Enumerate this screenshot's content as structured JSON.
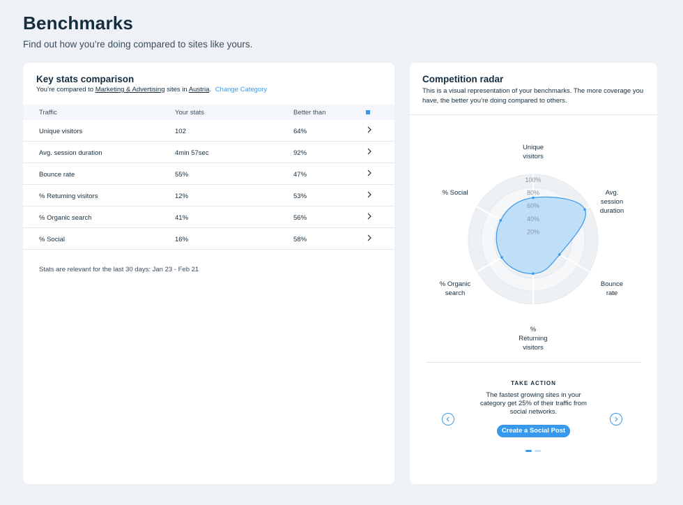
{
  "page": {
    "title": "Benchmarks",
    "subtitle": "Find out how you’re doing compared to sites like yours."
  },
  "key_stats": {
    "title": "Key stats comparison",
    "compared_prefix": "You’re compared to",
    "category": "Marketing & Advertising",
    "sites_in": "sites in",
    "country": "Austria",
    "period": ".",
    "change_link": "Change Category",
    "columns": [
      "Traffic",
      "Your stats",
      "Better than"
    ],
    "rows": [
      {
        "metric": "Unique visitors",
        "stat": "102",
        "better": "64%"
      },
      {
        "metric": "Avg. session duration",
        "stat": "4min 57sec",
        "better": "92%"
      },
      {
        "metric": "Bounce rate",
        "stat": "55%",
        "better": "47%"
      },
      {
        "metric": "% Returning visitors",
        "stat": "12%",
        "better": "53%"
      },
      {
        "metric": "% Organic search",
        "stat": "41%",
        "better": "56%"
      },
      {
        "metric": "% Social",
        "stat": "16%",
        "better": "58%"
      }
    ],
    "footnote": "Stats are relevant for the last 30 days: Jan 23 - Feb 21"
  },
  "radar": {
    "title": "Competition radar",
    "description": "This is a visual representation of your benchmarks. The more coverage you have, the better you’re doing compared to others.",
    "ring_labels": [
      "100%",
      "80%",
      "60%",
      "40%",
      "20%"
    ],
    "axes": [
      {
        "line1": "Unique",
        "line2": "visitors",
        "line3": ""
      },
      {
        "line1": "Avg.",
        "line2": "session",
        "line3": "duration"
      },
      {
        "line1": "Bounce",
        "line2": "rate",
        "line3": ""
      },
      {
        "line1": "%",
        "line2": "Returning",
        "line3": "visitors"
      },
      {
        "line1": "% Organic",
        "line2": "search",
        "line3": ""
      },
      {
        "line1": "% Social",
        "line2": "",
        "line3": ""
      }
    ],
    "values": [
      64,
      92,
      47,
      53,
      56,
      58
    ]
  },
  "take_action": {
    "heading": "TAKE ACTION",
    "text": "The fastest growing sites in your category get 25% of their traffic from social networks.",
    "button": "Create a Social Post"
  },
  "colors": {
    "accent": "#3899ec",
    "fill": "#b9dcf7",
    "text": "#162d3d"
  }
}
